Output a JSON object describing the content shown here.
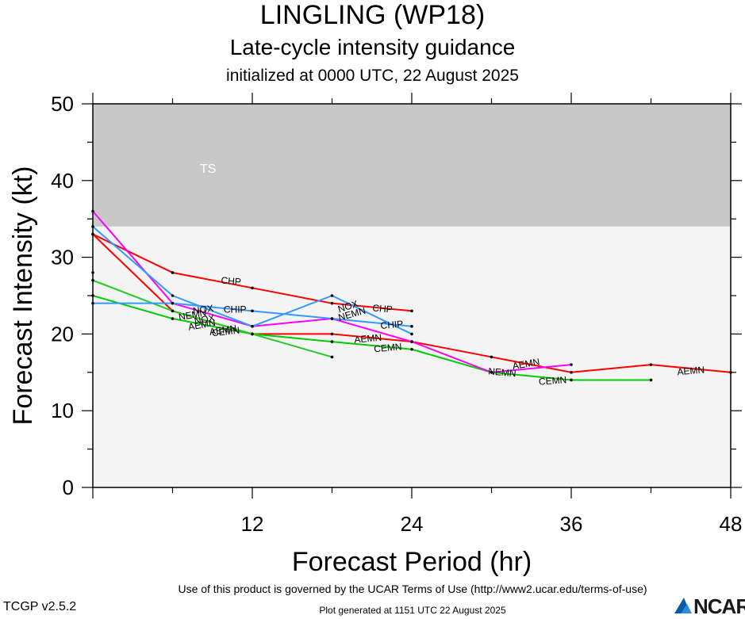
{
  "header": {
    "title": "LINGLING (WP18)",
    "subtitle": "Late-cycle intensity guidance",
    "init": "initialized at 0000 UTC, 22 August 2025"
  },
  "footer": {
    "terms": "Use of this product is governed by the UCAR Terms of Use (http://www2.ucar.edu/terms-of-use)",
    "version": "TCGP v2.5.2",
    "generated": "Plot generated at 1151 UTC   22 August 2025",
    "logo": "NCAR"
  },
  "chart_data": {
    "type": "line",
    "xlabel": "Forecast Period (hr)",
    "ylabel": "Forecast Intensity (kt)",
    "xlim": [
      0,
      48
    ],
    "ylim": [
      0,
      50
    ],
    "xticks": [
      12,
      24,
      36,
      48
    ],
    "yticks": [
      0,
      10,
      20,
      30,
      40,
      50
    ],
    "bands": [
      {
        "label": "TS",
        "from": 34,
        "to": 50,
        "color": "#c8c8c8"
      },
      {
        "label": "",
        "from": 0,
        "to": 34,
        "color": "#f4f4f4"
      }
    ],
    "series": [
      {
        "name": "AEMN",
        "color": "#ff0000",
        "x": [
          0,
          6,
          12,
          18,
          24,
          30,
          36,
          42,
          48
        ],
        "y": [
          33,
          23,
          20,
          20,
          19,
          17,
          15,
          16,
          15
        ]
      },
      {
        "name": "CHIP",
        "color": "#ff0000",
        "x": [
          0,
          6,
          12,
          18,
          24
        ],
        "y": [
          33,
          28,
          26,
          24,
          23
        ]
      },
      {
        "name": "CEMN",
        "color": "#00cc00",
        "x": [
          0,
          6,
          12,
          18,
          24,
          30,
          36,
          42
        ],
        "y": [
          25,
          22,
          20,
          19,
          18,
          15,
          14,
          14
        ]
      },
      {
        "name": "",
        "color": "#22cc22",
        "x": [
          0,
          6,
          12,
          18
        ],
        "y": [
          27,
          23,
          20,
          17
        ]
      },
      {
        "name": "NEMN",
        "color": "#ff00ff",
        "x": [
          0,
          6,
          12,
          18,
          24,
          30,
          36
        ],
        "y": [
          36,
          24,
          21,
          22,
          19,
          15,
          16
        ]
      },
      {
        "name": "CHIP",
        "color": "#3399ff",
        "x": [
          0,
          6,
          12,
          18,
          24
        ],
        "y": [
          24,
          24,
          23,
          22,
          21
        ]
      },
      {
        "name": "NOX",
        "color": "#3399ff",
        "x": [
          0,
          6,
          12,
          18,
          24
        ],
        "y": [
          34,
          25,
          21,
          25,
          20
        ]
      }
    ],
    "extra_points": [
      {
        "x": 0,
        "y": 28
      }
    ],
    "labels": [
      {
        "text": "CHP",
        "x": 10.4,
        "y": 26.9,
        "rot": 5
      },
      {
        "text": "NOX",
        "x": 8.3,
        "y": 23.2,
        "rot": -8
      },
      {
        "text": "CHIP",
        "x": 10.7,
        "y": 23.2,
        "rot": 0
      },
      {
        "text": "NEMN",
        "x": 7.5,
        "y": 22.5,
        "rot": -10
      },
      {
        "text": "NOX",
        "x": 8.4,
        "y": 21.9,
        "rot": -10
      },
      {
        "text": "AEMN",
        "x": 8.2,
        "y": 21.2,
        "rot": -10
      },
      {
        "text": "AEMN",
        "x": 9.8,
        "y": 20.5,
        "rot": -8
      },
      {
        "text": "CEMN",
        "x": 10.0,
        "y": 20.3,
        "rot": -6
      },
      {
        "text": "NOX",
        "x": 19.2,
        "y": 23.6,
        "rot": -18
      },
      {
        "text": "NEMN",
        "x": 19.5,
        "y": 22.6,
        "rot": -16
      },
      {
        "text": "CHP",
        "x": 21.8,
        "y": 23.3,
        "rot": 5
      },
      {
        "text": "CHIP",
        "x": 22.5,
        "y": 21.2,
        "rot": -5
      },
      {
        "text": "AEMN",
        "x": 20.7,
        "y": 19.4,
        "rot": -5
      },
      {
        "text": "CEMN",
        "x": 22.2,
        "y": 18.2,
        "rot": -5
      },
      {
        "text": "AEMN",
        "x": 32.6,
        "y": 16.1,
        "rot": -10
      },
      {
        "text": "NEMN",
        "x": 30.8,
        "y": 15.0,
        "rot": 5
      },
      {
        "text": "CEMN",
        "x": 34.6,
        "y": 13.9,
        "rot": -4
      },
      {
        "text": "AEMN",
        "x": 45.0,
        "y": 15.2,
        "rot": -5
      }
    ]
  }
}
